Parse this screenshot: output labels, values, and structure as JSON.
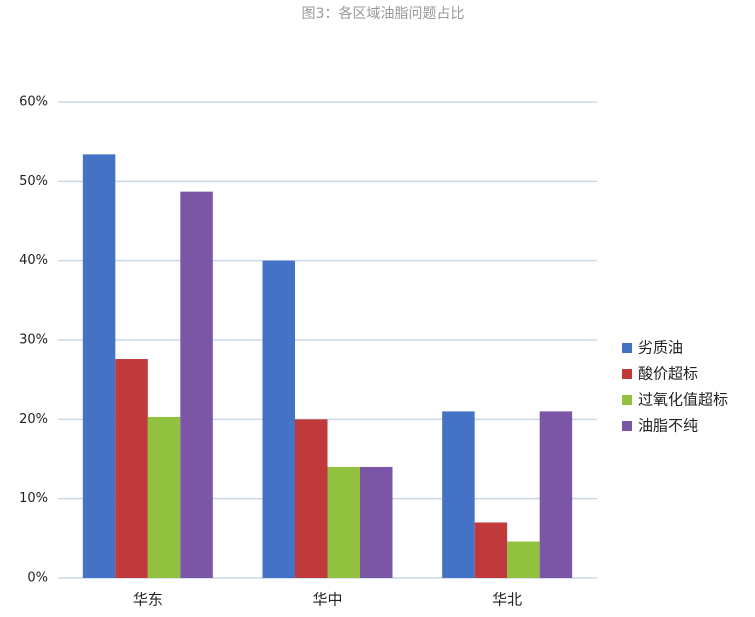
{
  "chart_data": {
    "type": "bar",
    "title": "图3：各区域油脂问题占比",
    "categories": [
      "华东",
      "华中",
      "华北"
    ],
    "series": [
      {
        "name": "劣质油",
        "color": "#4473c5",
        "values": [
          53.4,
          40,
          21
        ]
      },
      {
        "name": "酸价超标",
        "color": "#c0393b",
        "values": [
          27.6,
          20,
          7
        ]
      },
      {
        "name": "过氧化值超标",
        "color": "#92c03f",
        "values": [
          20.3,
          14,
          4.6
        ]
      },
      {
        "name": "油脂不纯",
        "color": "#7b55a6",
        "values": [
          48.7,
          14,
          21
        ]
      }
    ],
    "ylim": [
      0,
      60
    ],
    "yticks": [
      {
        "value": 0,
        "label": "0%"
      },
      {
        "value": 10,
        "label": "10%"
      },
      {
        "value": 20,
        "label": "20%"
      },
      {
        "value": 30,
        "label": "30%"
      },
      {
        "value": 40,
        "label": "40%"
      },
      {
        "value": 50,
        "label": "50%"
      },
      {
        "value": 60,
        "label": "60%"
      }
    ],
    "grid": true,
    "legend": "right"
  }
}
